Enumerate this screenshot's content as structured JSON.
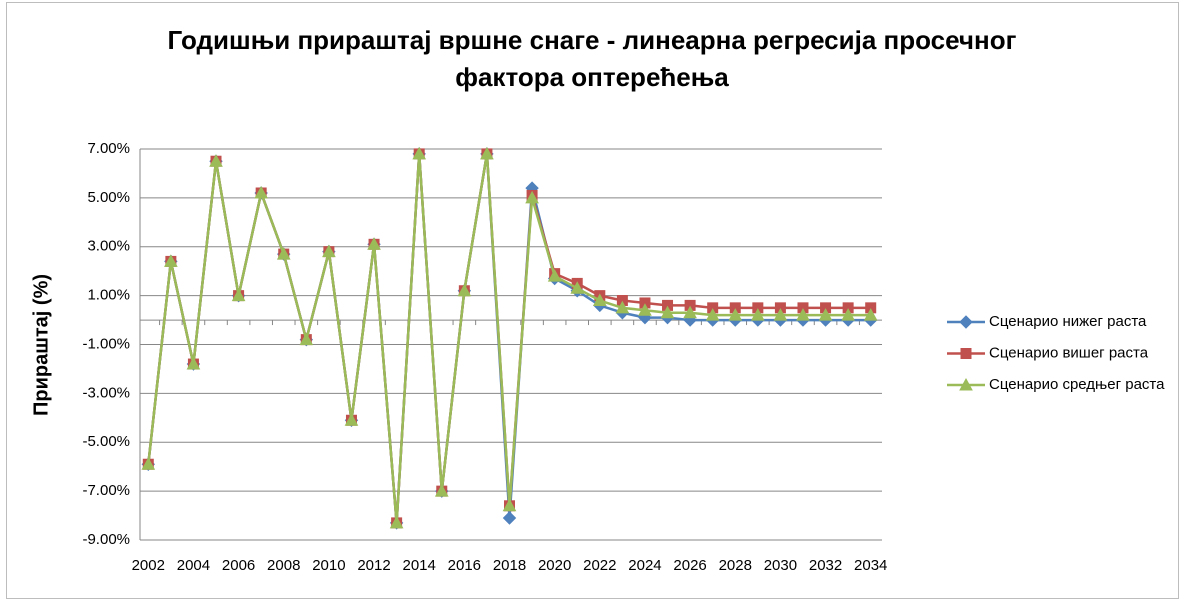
{
  "chart_data": {
    "type": "line",
    "title": "Годишњи прираштај вршне снаге - линеарна регресија просечног фактора оптерећења",
    "y_label": "Прираштај (%)",
    "categories": [
      "2002",
      null,
      "2004",
      null,
      "2006",
      null,
      "2008",
      null,
      "2010",
      null,
      "2012",
      null,
      "2014",
      null,
      "2016",
      null,
      "2018",
      null,
      "2020",
      null,
      "2022",
      null,
      "2024",
      null,
      "2026",
      null,
      "2028",
      null,
      "2030",
      null,
      "2032",
      null,
      "2034"
    ],
    "series": [
      {
        "name": "Сценарио нижег раста",
        "color": "#4f81bd",
        "marker": "diamond",
        "values": [
          -5.9,
          2.4,
          -1.8,
          6.5,
          1.0,
          5.2,
          2.7,
          -0.8,
          2.8,
          -4.1,
          3.1,
          -8.3,
          6.8,
          -7.0,
          1.2,
          6.8,
          -8.1,
          5.4,
          1.7,
          1.2,
          0.6,
          0.3,
          0.1,
          0.1,
          0.0,
          0.0,
          0.0,
          0.0,
          0.0,
          0.0,
          0.0,
          0.0,
          0.0
        ]
      },
      {
        "name": "Сценарио вишег раста",
        "color": "#c0504d",
        "marker": "square",
        "values": [
          -5.9,
          2.4,
          -1.8,
          6.5,
          1.0,
          5.2,
          2.7,
          -0.8,
          2.8,
          -4.1,
          3.1,
          -8.3,
          6.8,
          -7.0,
          1.2,
          6.8,
          -7.6,
          5.1,
          1.9,
          1.5,
          1.0,
          0.8,
          0.7,
          0.6,
          0.6,
          0.5,
          0.5,
          0.5,
          0.5,
          0.5,
          0.5,
          0.5,
          0.5
        ]
      },
      {
        "name": "Сценарио средњег раста",
        "color": "#9bbb59",
        "marker": "triangle",
        "values": [
          -5.9,
          2.4,
          -1.8,
          6.5,
          1.0,
          5.2,
          2.7,
          -0.8,
          2.8,
          -4.1,
          3.1,
          -8.3,
          6.8,
          -7.0,
          1.2,
          6.8,
          -7.6,
          5.0,
          1.8,
          1.3,
          0.8,
          0.5,
          0.4,
          0.3,
          0.3,
          0.2,
          0.2,
          0.2,
          0.2,
          0.2,
          0.2,
          0.2,
          0.2
        ]
      }
    ],
    "ylim": [
      -9,
      7
    ],
    "yticks": [
      {
        "value": -9,
        "label": "-9.00%"
      },
      {
        "value": -7,
        "label": "-7.00%"
      },
      {
        "value": -5,
        "label": "-5.00%"
      },
      {
        "value": -3,
        "label": "-3.00%"
      },
      {
        "value": -1,
        "label": "-1.00%"
      },
      {
        "value": 1,
        "label": "1.00%"
      },
      {
        "value": 3,
        "label": "3.00%"
      },
      {
        "value": 5,
        "label": "5.00%"
      },
      {
        "value": 7,
        "label": "7.00%"
      }
    ],
    "grid": true,
    "legend": "right"
  }
}
